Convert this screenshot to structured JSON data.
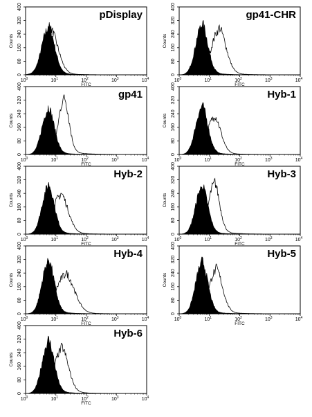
{
  "chart_data": [
    {
      "type": "area",
      "title": "pDisplay",
      "xlabel": "FITC",
      "ylabel": "Counts",
      "xscale": "log",
      "xlim": [
        1,
        10000
      ],
      "ylim": [
        0,
        400
      ],
      "x_ticks": [
        "10",
        "10",
        "10",
        "10",
        "10"
      ],
      "x_tick_exps": [
        "0",
        "1",
        "2",
        "3",
        "4"
      ],
      "y_ticks": [
        "0",
        "80",
        "160",
        "240",
        "320",
        "400"
      ],
      "series": [
        {
          "style": "filled",
          "color": "#000000",
          "peak_x": 5.5,
          "peak_y": 270,
          "width": 0.21
        },
        {
          "style": "outline",
          "color": "#000000",
          "peak_x": 6.5,
          "peak_y": 250,
          "width": 0.25
        }
      ]
    },
    {
      "type": "area",
      "title": "gp41-CHR",
      "xlabel": "FITC",
      "ylabel": "Counts",
      "xscale": "log",
      "xlim": [
        1,
        10000
      ],
      "ylim": [
        0,
        400
      ],
      "x_ticks": [
        "10",
        "10",
        "10",
        "10",
        "10"
      ],
      "x_tick_exps": [
        "0",
        "1",
        "2",
        "3",
        "4"
      ],
      "y_ticks": [
        "0",
        "80",
        "160",
        "240",
        "320",
        "400"
      ],
      "series": [
        {
          "style": "filled",
          "color": "#000000",
          "peak_x": 5.5,
          "peak_y": 285,
          "width": 0.2
        },
        {
          "style": "outline",
          "color": "#000000",
          "peak_x": 20,
          "peak_y": 260,
          "width": 0.24
        }
      ]
    },
    {
      "type": "area",
      "title": "gp41",
      "xlabel": "FITC",
      "ylabel": "Counts",
      "xscale": "log",
      "xlim": [
        1,
        10000
      ],
      "ylim": [
        0,
        400
      ],
      "x_ticks": [
        "10",
        "10",
        "10",
        "10",
        "10"
      ],
      "x_tick_exps": [
        "0",
        "1",
        "2",
        "3",
        "4"
      ],
      "y_ticks": [
        "0",
        "80",
        "160",
        "240",
        "320",
        "400"
      ],
      "series": [
        {
          "style": "filled",
          "color": "#000000",
          "peak_x": 5.5,
          "peak_y": 260,
          "width": 0.2
        },
        {
          "style": "outline",
          "color": "#000000",
          "peak_x": 18,
          "peak_y": 320,
          "width": 0.17
        }
      ]
    },
    {
      "type": "area",
      "title": "Hyb-1",
      "xlabel": "FITC",
      "ylabel": "Counts",
      "xscale": "log",
      "xlim": [
        1,
        10000
      ],
      "ylim": [
        0,
        400
      ],
      "x_ticks": [
        "10",
        "10",
        "10",
        "10",
        "10"
      ],
      "x_tick_exps": [
        "0",
        "1",
        "2",
        "3",
        "4"
      ],
      "y_ticks": [
        "0",
        "80",
        "160",
        "240",
        "320",
        "400"
      ],
      "series": [
        {
          "style": "filled",
          "color": "#000000",
          "peak_x": 5.5,
          "peak_y": 270,
          "width": 0.2
        },
        {
          "style": "outline",
          "color": "#000000",
          "peak_x": 14,
          "peak_y": 215,
          "width": 0.22
        }
      ]
    },
    {
      "type": "area",
      "title": "Hyb-2",
      "xlabel": "FITC",
      "ylabel": "Counts",
      "xscale": "log",
      "xlim": [
        1,
        10000
      ],
      "ylim": [
        0,
        400
      ],
      "x_ticks": [
        "10",
        "10",
        "10",
        "10",
        "10"
      ],
      "x_tick_exps": [
        "0",
        "1",
        "2",
        "3",
        "4"
      ],
      "y_ticks": [
        "0",
        "80",
        "160",
        "240",
        "320",
        "400"
      ],
      "series": [
        {
          "style": "filled",
          "color": "#000000",
          "peak_x": 5.5,
          "peak_y": 275,
          "width": 0.2
        },
        {
          "style": "outline",
          "color": "#000000",
          "peak_x": 14,
          "peak_y": 225,
          "width": 0.25
        }
      ]
    },
    {
      "type": "area",
      "title": "Hyb-3",
      "xlabel": "FITC",
      "ylabel": "Counts",
      "xscale": "log",
      "xlim": [
        1,
        10000
      ],
      "ylim": [
        0,
        400
      ],
      "x_ticks": [
        "10",
        "10",
        "10",
        "10",
        "10"
      ],
      "x_tick_exps": [
        "0",
        "1",
        "2",
        "3",
        "4"
      ],
      "y_ticks": [
        "0",
        "80",
        "160",
        "240",
        "320",
        "400"
      ],
      "series": [
        {
          "style": "filled",
          "color": "#000000",
          "peak_x": 5.5,
          "peak_y": 270,
          "width": 0.2
        },
        {
          "style": "outline",
          "color": "#000000",
          "peak_x": 14,
          "peak_y": 290,
          "width": 0.18
        }
      ]
    },
    {
      "type": "area",
      "title": "Hyb-4",
      "xlabel": "FITC",
      "ylabel": "Counts",
      "xscale": "log",
      "xlim": [
        1,
        10000
      ],
      "ylim": [
        0,
        400
      ],
      "x_ticks": [
        "10",
        "10",
        "10",
        "10",
        "10"
      ],
      "x_tick_exps": [
        "0",
        "1",
        "2",
        "3",
        "4"
      ],
      "y_ticks": [
        "0",
        "80",
        "160",
        "240",
        "320",
        "400"
      ],
      "series": [
        {
          "style": "filled",
          "color": "#000000",
          "peak_x": 5.5,
          "peak_y": 300,
          "width": 0.2
        },
        {
          "style": "outline",
          "color": "#000000",
          "peak_x": 20,
          "peak_y": 225,
          "width": 0.3
        }
      ]
    },
    {
      "type": "area",
      "title": "Hyb-5",
      "xlabel": "FITC",
      "ylabel": "Counts",
      "xscale": "log",
      "xlim": [
        1,
        10000
      ],
      "ylim": [
        0,
        400
      ],
      "x_ticks": [
        "10",
        "10",
        "10",
        "10",
        "10"
      ],
      "x_tick_exps": [
        "0",
        "1",
        "2",
        "3",
        "4"
      ],
      "y_ticks": [
        "0",
        "80",
        "160",
        "240",
        "320",
        "400"
      ],
      "series": [
        {
          "style": "filled",
          "color": "#000000",
          "peak_x": 5.5,
          "peak_y": 290,
          "width": 0.2
        },
        {
          "style": "outline",
          "color": "#000000",
          "peak_x": 16,
          "peak_y": 250,
          "width": 0.22
        }
      ]
    },
    {
      "type": "area",
      "title": "Hyb-6",
      "xlabel": "FITC",
      "ylabel": "Counts",
      "xscale": "log",
      "xlim": [
        1,
        10000
      ],
      "ylim": [
        0,
        400
      ],
      "x_ticks": [
        "10",
        "10",
        "10",
        "10",
        "10"
      ],
      "x_tick_exps": [
        "0",
        "1",
        "2",
        "3",
        "4"
      ],
      "y_ticks": [
        "0",
        "80",
        "160",
        "240",
        "320",
        "400"
      ],
      "series": [
        {
          "style": "filled",
          "color": "#000000",
          "peak_x": 5.5,
          "peak_y": 295,
          "width": 0.2
        },
        {
          "style": "outline",
          "color": "#000000",
          "peak_x": 15,
          "peak_y": 255,
          "width": 0.23
        }
      ]
    }
  ]
}
